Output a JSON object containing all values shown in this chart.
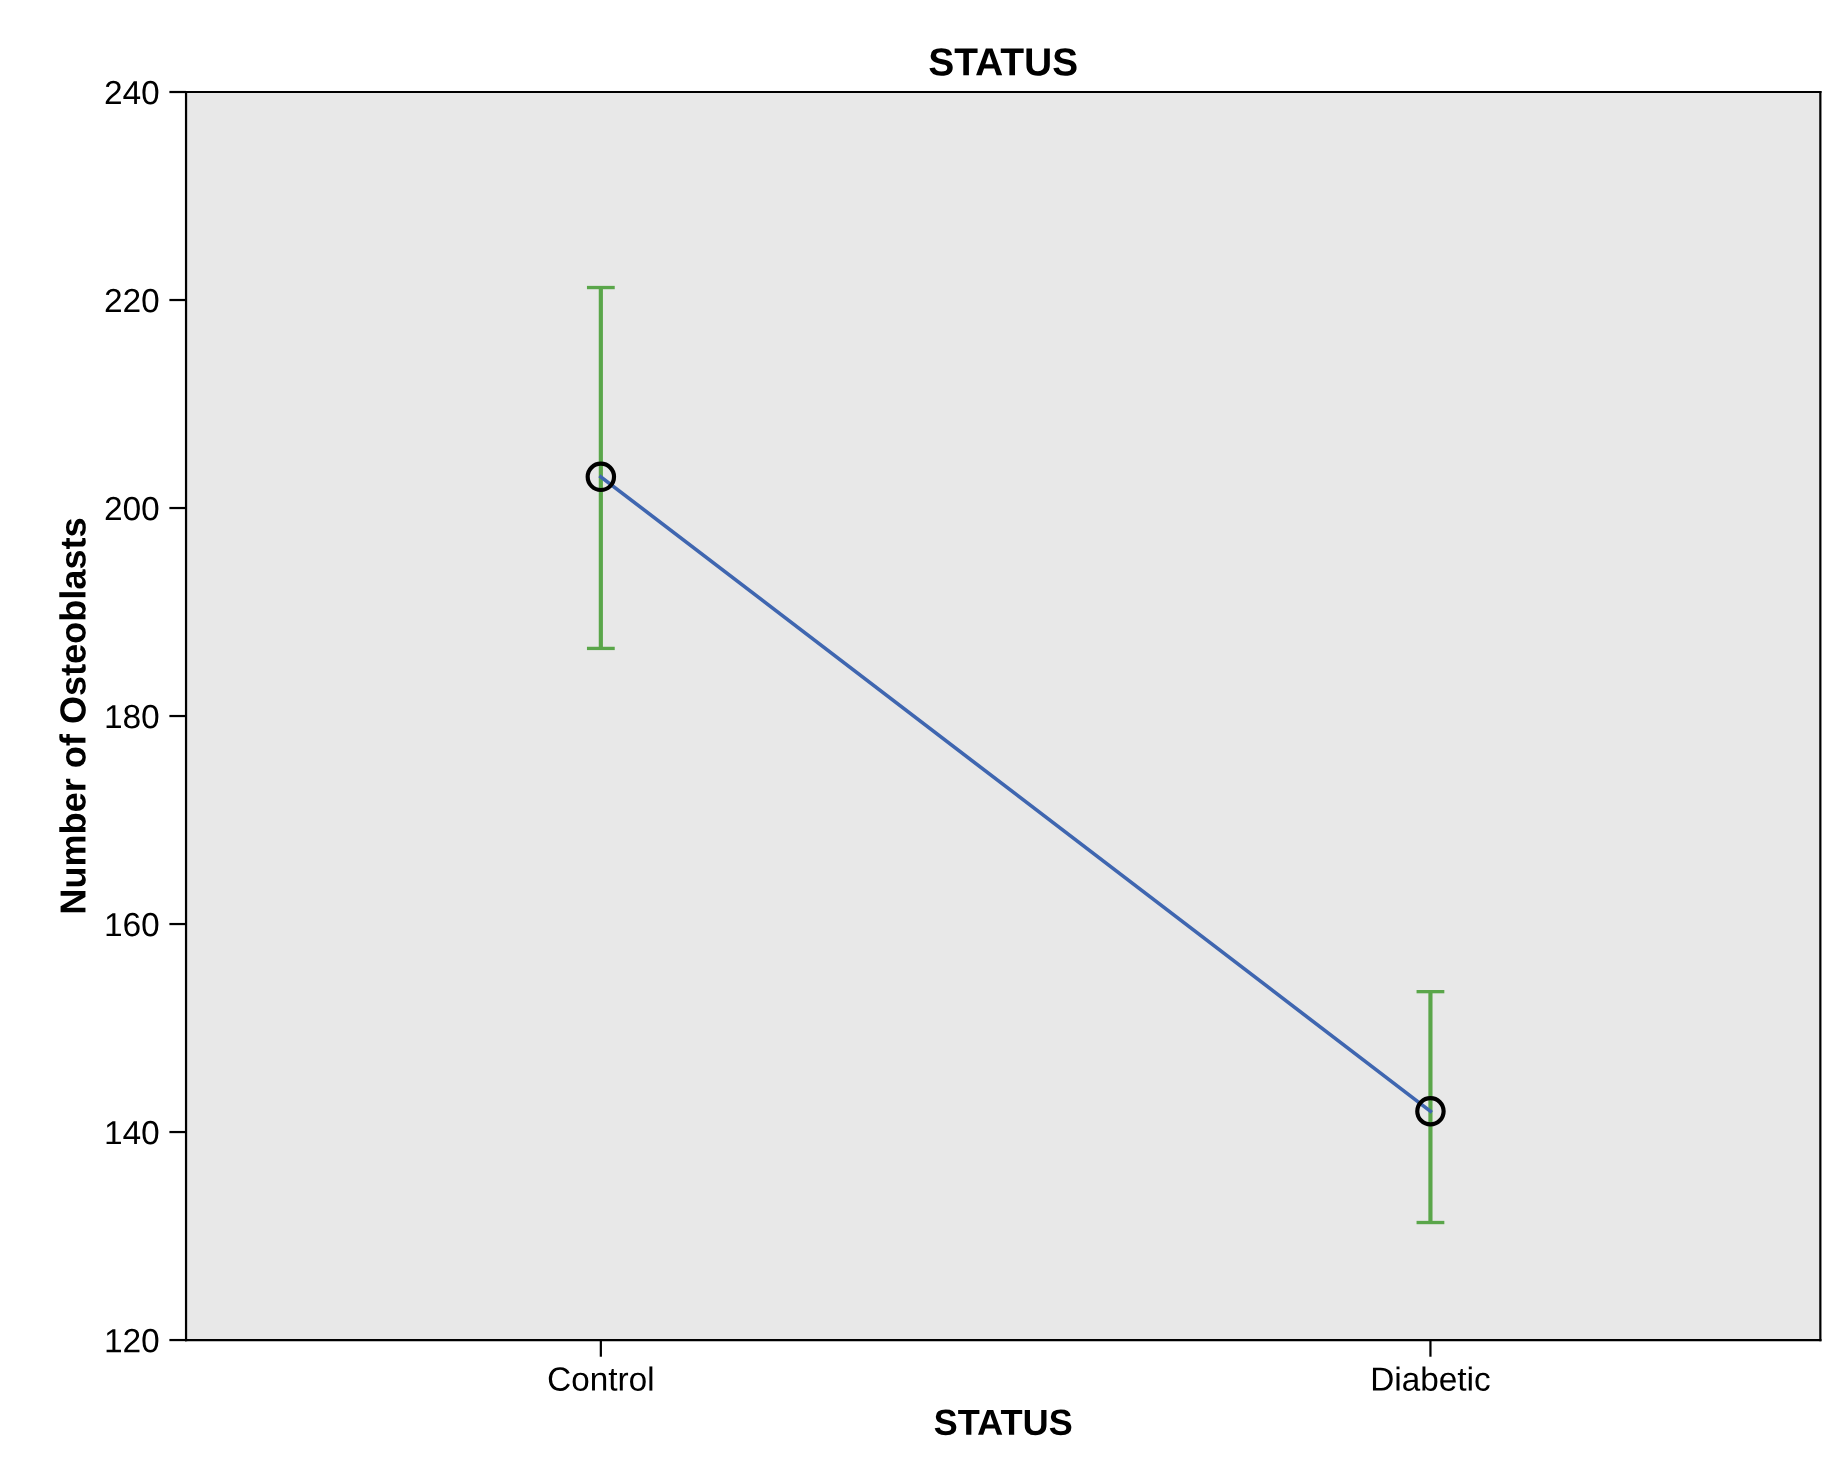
{
  "chart_data": {
    "type": "line",
    "title": "STATUS",
    "xlabel": "STATUS",
    "ylabel": "Number of Osteoblasts",
    "categories": [
      "Control",
      "Diabetic"
    ],
    "series": [
      {
        "color": "#3f66b0",
        "values": [
          203,
          142
        ],
        "errors": [
          [
            186.5,
            221.2
          ],
          [
            131.3,
            153.5
          ]
        ]
      }
    ],
    "ylim": [
      120,
      240
    ],
    "yticks": [
      120,
      140,
      160,
      180,
      200,
      220,
      240
    ],
    "marker": "circle",
    "line_style": "solid",
    "grid": false,
    "legend": false
  }
}
